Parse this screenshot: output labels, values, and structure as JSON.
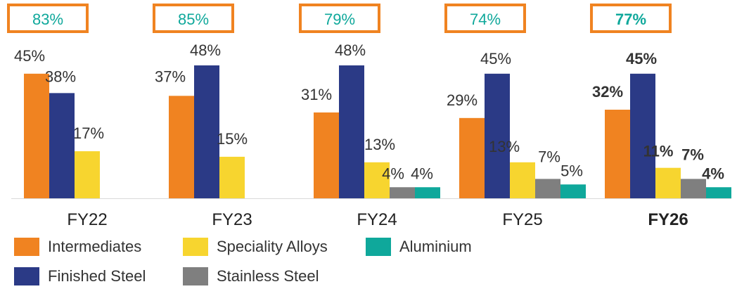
{
  "chart_data": {
    "type": "bar",
    "categories": [
      "FY22",
      "FY23",
      "FY24",
      "FY25",
      "FY26"
    ],
    "bold_category": "FY26",
    "series": [
      {
        "name": "Intermediates",
        "color": "#F08321",
        "values": [
          45,
          37,
          31,
          29,
          32
        ]
      },
      {
        "name": "Finished Steel",
        "color": "#2B3A86",
        "values": [
          38,
          48,
          48,
          45,
          45
        ]
      },
      {
        "name": "Speciality Alloys",
        "color": "#F7D52F",
        "values": [
          17,
          15,
          13,
          13,
          11
        ]
      },
      {
        "name": "Stainless Steel",
        "color": "#7F7F7F",
        "values": [
          null,
          null,
          4,
          7,
          7
        ]
      },
      {
        "name": "Aluminium",
        "color": "#0FA89B",
        "values": [
          null,
          null,
          4,
          5,
          4
        ]
      }
    ],
    "data_labels": [
      [
        "45%",
        "38%",
        "17%",
        null,
        null
      ],
      [
        "37%",
        "48%",
        "15%",
        null,
        null
      ],
      [
        "31%",
        "48%",
        "13%",
        "4%",
        "4%"
      ],
      [
        "29%",
        "45%",
        "13%",
        "7%",
        "5%"
      ],
      [
        "32%",
        "45%",
        "11%",
        "7%",
        "4%"
      ]
    ],
    "top_labels": [
      "83%",
      "85%",
      "79%",
      "74%",
      "77%"
    ],
    "top_label_color": "#0FA89B",
    "top_box_color": "#F08321",
    "ylim": [
      0,
      52
    ],
    "legend_position": "bottom-left",
    "grid": false
  },
  "legend": [
    {
      "label": "Intermediates",
      "color": "#F08321"
    },
    {
      "label": "Speciality Alloys",
      "color": "#F7D52F"
    },
    {
      "label": "Aluminium",
      "color": "#0FA89B"
    },
    {
      "label": "Finished Steel",
      "color": "#2B3A86"
    },
    {
      "label": "Stainless Steel",
      "color": "#7F7F7F"
    }
  ]
}
